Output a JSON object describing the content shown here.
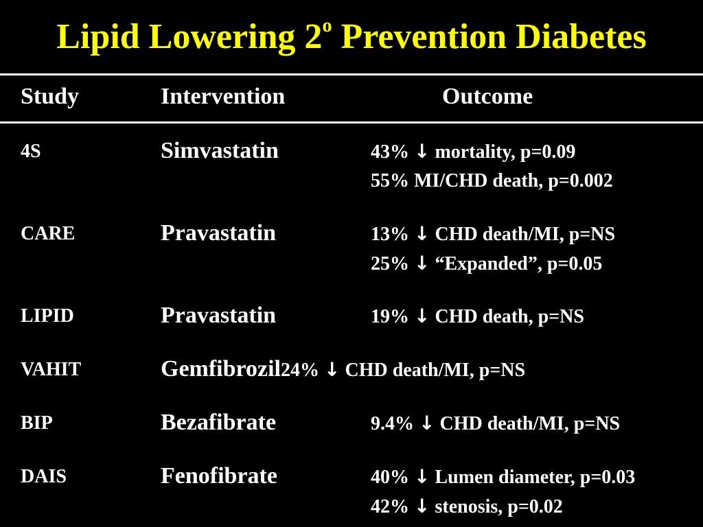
{
  "title": {
    "main": "Lipid Lowering 2",
    "superscript": "o",
    "rest": " Prevention Diabetes"
  },
  "headers": {
    "study": "Study",
    "intervention": "Intervention",
    "outcome": "Outcome"
  },
  "rows": [
    {
      "study": "4S",
      "intervention": "Simvastatin",
      "outcome1": {
        "pct": "43%",
        "arrow": "↓",
        "text": "mortality, p=0.09"
      },
      "outcome2": {
        "pct": "55%",
        "arrow": "",
        "text": "MI/CHD death, p=0.002"
      }
    },
    {
      "study": "CARE",
      "intervention": "Pravastatin",
      "outcome1": {
        "pct": "13%",
        "arrow": "↓",
        "text": "CHD death/MI, p=NS"
      },
      "outcome2": {
        "pct": "25%",
        "arrow": "↓",
        "text": "“Expanded”, p=0.05"
      }
    },
    {
      "study": "LIPID",
      "intervention": "Pravastatin",
      "outcome1": {
        "pct": "19%",
        "arrow": "↓",
        "text": "CHD death, p=NS"
      }
    },
    {
      "study": "VAHIT",
      "intervention": "Gemfibrozil",
      "outcome1": {
        "pct": "24%",
        "arrow": "↓",
        "text": "CHD death/MI, p=NS"
      }
    },
    {
      "study": "BIP",
      "intervention": "Bezafibrate",
      "outcome1": {
        "pct": "9.4%",
        "arrow": "↓",
        "text": "CHD death/MI, p=NS"
      }
    },
    {
      "study": "DAIS",
      "intervention": "Fenofibrate",
      "outcome1": {
        "pct": "40%",
        "arrow": "↓",
        "text": "Lumen diameter, p=0.03"
      },
      "outcome2": {
        "pct": "42%",
        "arrow": "↓",
        "text": "stenosis, p=0.02"
      }
    }
  ]
}
